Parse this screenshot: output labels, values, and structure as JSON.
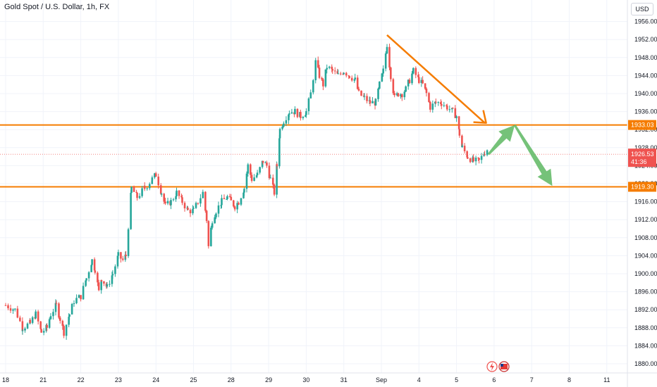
{
  "header": {
    "symbol_title": "Gold Spot / U.S. Dollar, 1h, FX",
    "currency_label": "USD"
  },
  "chart_data": {
    "type": "candlestick",
    "title": "Gold Spot / U.S. Dollar, 1h, FX",
    "y_unit": "USD",
    "ylim": [
      1878,
      1960
    ],
    "y_ticks": [
      1880,
      1884,
      1888,
      1892,
      1896,
      1900,
      1904,
      1908,
      1912,
      1916,
      1920,
      1924,
      1928,
      1932,
      1936,
      1940,
      1944,
      1948,
      1952,
      1956
    ],
    "y_tick_labels": [
      "1880.00",
      "1884.00",
      "1888.00",
      "1892.00",
      "1896.00",
      "1900.00",
      "1904.00",
      "1908.00",
      "1912.00",
      "1916.00",
      "1920.00",
      "1924.00",
      "1928.00",
      "1932.00",
      "1936.00",
      "1940.00",
      "1944.00",
      "1948.00",
      "1952.00",
      "1956.00"
    ],
    "x_ticks": [
      {
        "label": "18",
        "x": 0
      },
      {
        "label": "21",
        "x": 1
      },
      {
        "label": "22",
        "x": 2
      },
      {
        "label": "23",
        "x": 3
      },
      {
        "label": "24",
        "x": 4
      },
      {
        "label": "25",
        "x": 5
      },
      {
        "label": "28",
        "x": 6
      },
      {
        "label": "29",
        "x": 7
      },
      {
        "label": "30",
        "x": 8
      },
      {
        "label": "31",
        "x": 9
      },
      {
        "label": "Sep",
        "x": 10
      },
      {
        "label": "4",
        "x": 11
      },
      {
        "label": "5",
        "x": 12
      },
      {
        "label": "6",
        "x": 13
      },
      {
        "label": "7",
        "x": 14
      },
      {
        "label": "8",
        "x": 15
      },
      {
        "label": "11",
        "x": 16
      }
    ],
    "candles_anchor_path": [
      [
        0.0,
        1893
      ],
      [
        0.25,
        1892
      ],
      [
        0.45,
        1888
      ],
      [
        0.65,
        1889
      ],
      [
        0.8,
        1891
      ],
      [
        0.95,
        1887
      ],
      [
        1.1,
        1888
      ],
      [
        1.2,
        1891
      ],
      [
        1.35,
        1893
      ],
      [
        1.45,
        1890
      ],
      [
        1.55,
        1887
      ],
      [
        1.7,
        1891
      ],
      [
        1.82,
        1894
      ],
      [
        2.0,
        1895
      ],
      [
        2.15,
        1899
      ],
      [
        2.3,
        1903
      ],
      [
        2.38,
        1901
      ],
      [
        2.48,
        1896
      ],
      [
        2.55,
        1899
      ],
      [
        2.7,
        1897
      ],
      [
        2.85,
        1900
      ],
      [
        3.0,
        1904
      ],
      [
        3.12,
        1903
      ],
      [
        3.2,
        1904
      ],
      [
        3.35,
        1919
      ],
      [
        3.5,
        1917
      ],
      [
        3.7,
        1919
      ],
      [
        3.9,
        1921
      ],
      [
        4.0,
        1922
      ],
      [
        4.15,
        1918
      ],
      [
        4.25,
        1915
      ],
      [
        4.4,
        1916
      ],
      [
        4.55,
        1918
      ],
      [
        4.7,
        1916
      ],
      [
        4.85,
        1914
      ],
      [
        5.0,
        1914
      ],
      [
        5.12,
        1916
      ],
      [
        5.25,
        1918
      ],
      [
        5.35,
        1912
      ],
      [
        5.4,
        1906
      ],
      [
        5.5,
        1912
      ],
      [
        5.6,
        1914
      ],
      [
        5.75,
        1916
      ],
      [
        5.9,
        1917
      ],
      [
        6.0,
        1916
      ],
      [
        6.1,
        1915
      ],
      [
        6.2,
        1916
      ],
      [
        6.35,
        1919
      ],
      [
        6.45,
        1924
      ],
      [
        6.55,
        1921
      ],
      [
        6.7,
        1922
      ],
      [
        6.85,
        1925
      ],
      [
        6.95,
        1924
      ],
      [
        7.05,
        1921
      ],
      [
        7.15,
        1918
      ],
      [
        7.22,
        1924
      ],
      [
        7.3,
        1932
      ],
      [
        7.4,
        1934
      ],
      [
        7.55,
        1936
      ],
      [
        7.7,
        1936
      ],
      [
        7.85,
        1935
      ],
      [
        8.0,
        1936
      ],
      [
        8.12,
        1940
      ],
      [
        8.25,
        1947
      ],
      [
        8.35,
        1944
      ],
      [
        8.45,
        1942
      ],
      [
        8.55,
        1946
      ],
      [
        8.7,
        1945
      ],
      [
        8.85,
        1944
      ],
      [
        9.0,
        1945
      ],
      [
        9.15,
        1944
      ],
      [
        9.3,
        1943
      ],
      [
        9.4,
        1940
      ],
      [
        9.55,
        1939
      ],
      [
        9.7,
        1938
      ],
      [
        9.85,
        1938
      ],
      [
        9.95,
        1942
      ],
      [
        10.05,
        1945
      ],
      [
        10.15,
        1951
      ],
      [
        10.25,
        1944
      ],
      [
        10.35,
        1939
      ],
      [
        10.45,
        1940
      ],
      [
        10.55,
        1940
      ],
      [
        10.65,
        1941
      ],
      [
        10.75,
        1943
      ],
      [
        10.85,
        1945
      ],
      [
        11.0,
        1943
      ],
      [
        11.1,
        1942
      ],
      [
        11.2,
        1940
      ],
      [
        11.3,
        1937
      ],
      [
        11.45,
        1938
      ],
      [
        11.6,
        1938
      ],
      [
        11.75,
        1937
      ],
      [
        11.9,
        1936
      ],
      [
        12.0,
        1935
      ],
      [
        12.08,
        1931
      ],
      [
        12.15,
        1928
      ],
      [
        12.3,
        1926
      ],
      [
        12.45,
        1925
      ],
      [
        12.6,
        1925
      ],
      [
        12.75,
        1927
      ],
      [
        12.85,
        1928
      ]
    ],
    "last_price_label": "1926.53",
    "countdown_label": "41:36",
    "last_price_value": 1926.53,
    "horizontal_lines": [
      {
        "price": 1933.03,
        "label": "1933.03"
      },
      {
        "price": 1919.3,
        "label": "1919.30"
      }
    ],
    "trend_arrow": {
      "from": [
        10.15,
        1953
      ],
      "to": [
        12.75,
        1933.5
      ]
    },
    "projection_arrows": [
      {
        "from": [
          12.85,
          1926.5
        ],
        "to": [
          13.55,
          1933
        ]
      },
      {
        "from": [
          13.55,
          1933
        ],
        "to": [
          14.55,
          1919.5
        ]
      }
    ],
    "colors": {
      "up": "#26a69a",
      "down": "#ef5350",
      "level_line": "#f57c00",
      "projection": "#66bb6a",
      "last_price": "#ef5350",
      "grid": "#f0f3fa",
      "axis_text": "#131722"
    },
    "grid": true
  }
}
